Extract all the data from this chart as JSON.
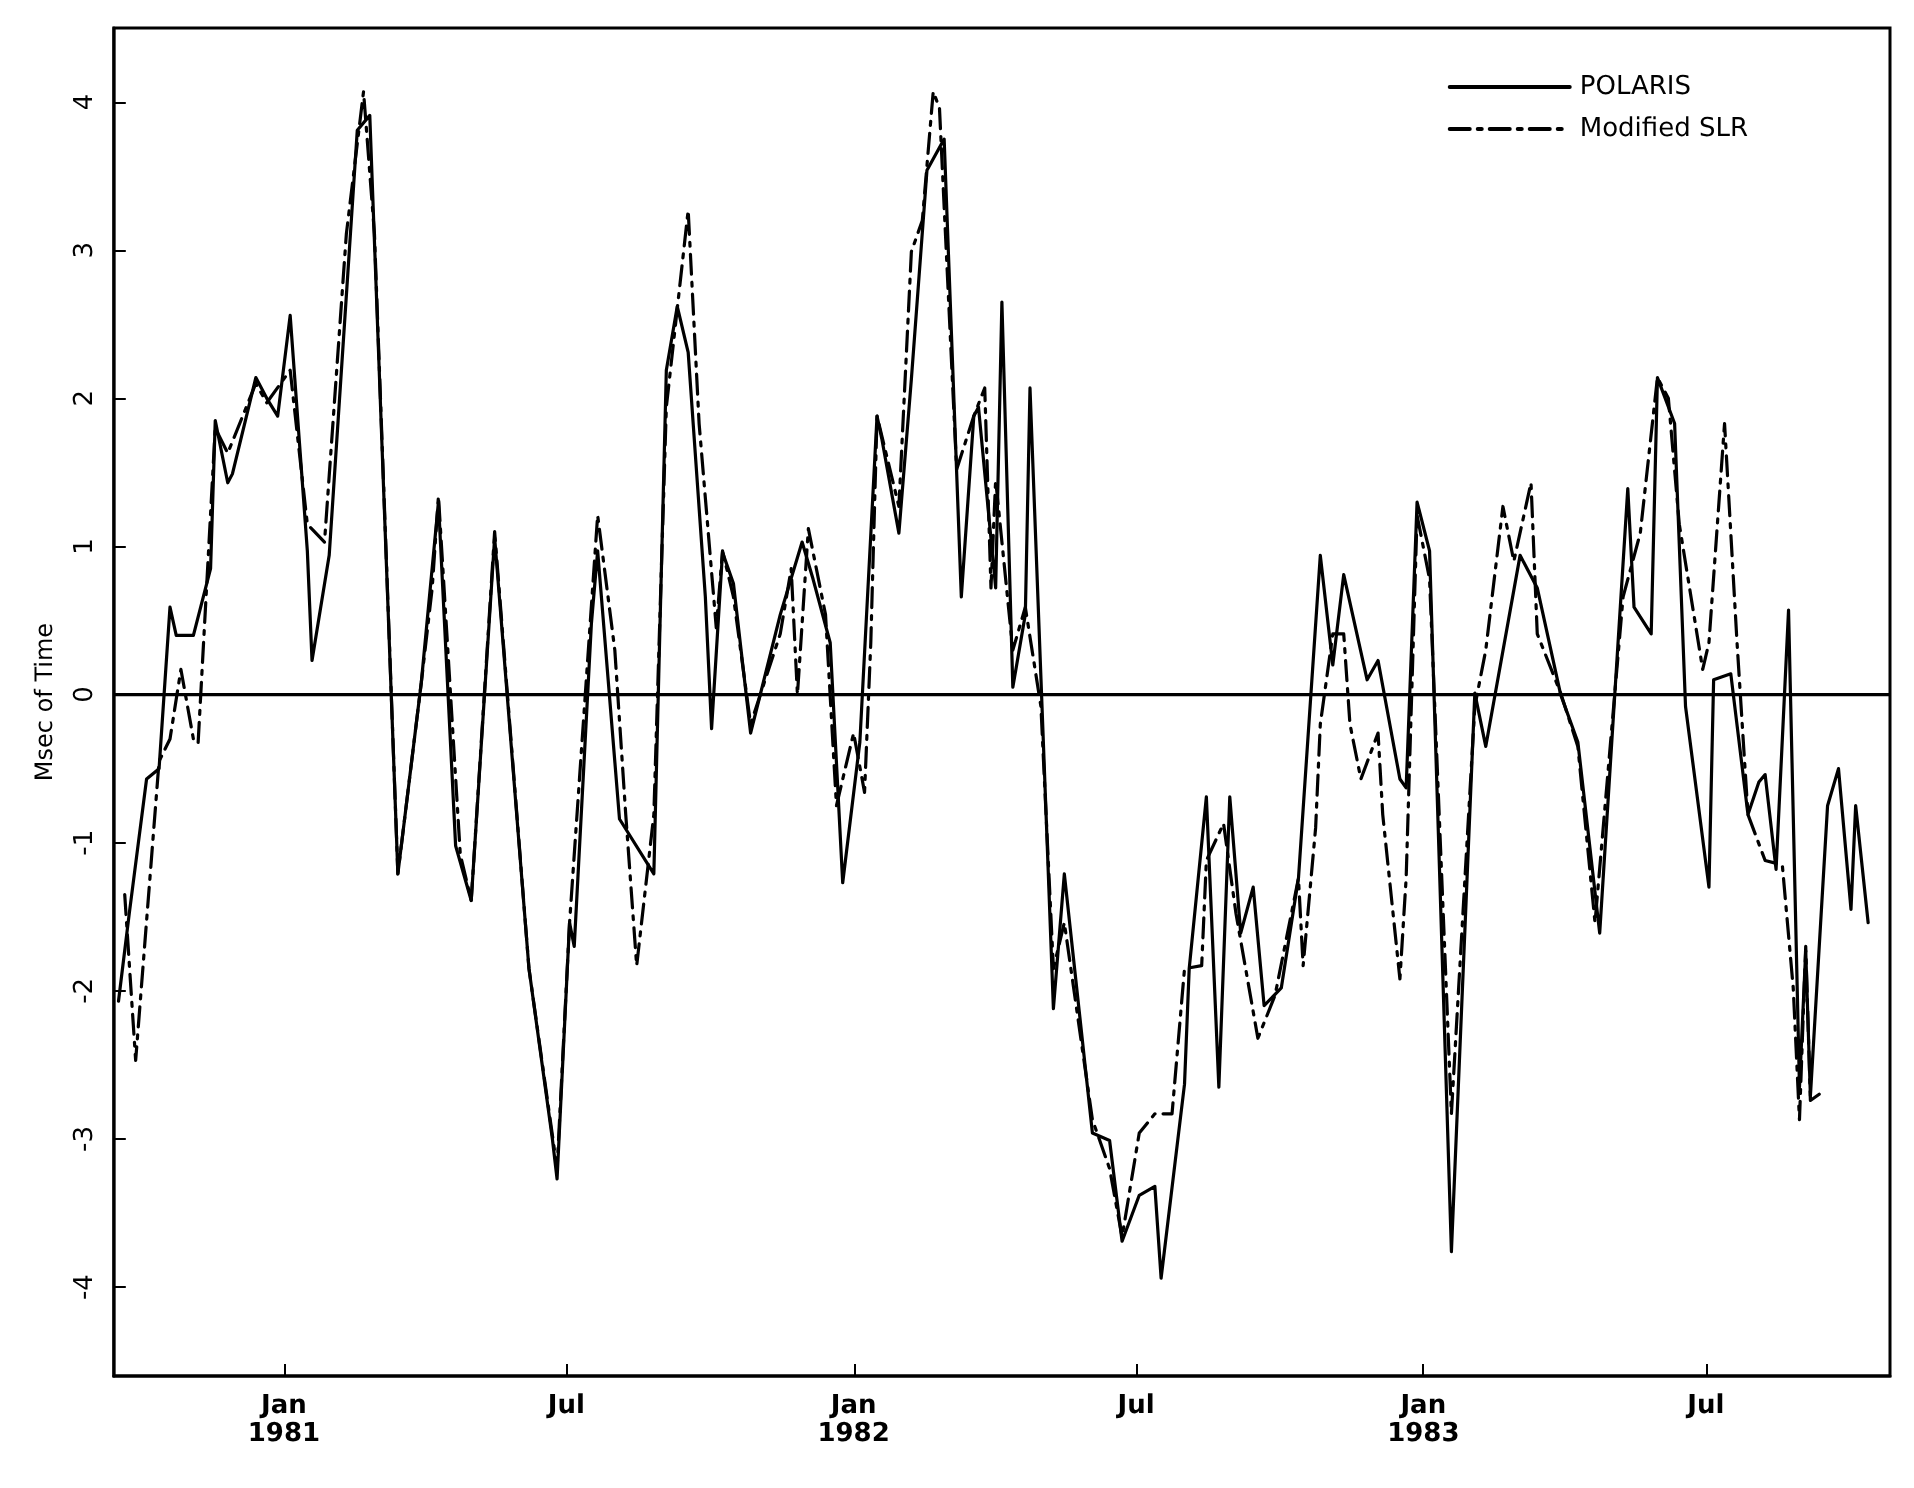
{
  "chart_data": {
    "type": "line",
    "ylabel": "Msec of Time",
    "xlim": [
      "1980-09-14",
      "1983-10-27"
    ],
    "xticks": [
      {
        "value": "1981-01-01",
        "label": "Jan\n1981"
      },
      {
        "value": "1981-07-01",
        "label": "Jul"
      },
      {
        "value": "1982-01-01",
        "label": "Jan\n1982"
      },
      {
        "value": "1982-07-01",
        "label": "Jul"
      },
      {
        "value": "1983-01-01",
        "label": "Jan\n1983"
      },
      {
        "value": "1983-07-01",
        "label": "Jul"
      }
    ],
    "ylim": [
      -4.6,
      4.5
    ],
    "yticks": [
      -4,
      -3,
      -2,
      -1,
      0,
      1,
      2,
      3,
      4
    ],
    "grid": false,
    "legend": "top right",
    "marker": "none",
    "ref_lines": [
      {
        "axis": "y",
        "value": 0,
        "color": "#000000",
        "line_style": "solid"
      }
    ],
    "series": [
      {
        "name": "POLARIS",
        "color": "#000000",
        "line_style": "solid",
        "x": [
          "1980-09-17",
          "1980-09-24",
          "1980-10-05",
          "1980-10-13",
          "1980-10-20",
          "1980-10-24",
          "1980-11-04",
          "1980-11-15",
          "1980-11-18",
          "1980-11-26",
          "1980-11-29",
          "1980-12-14",
          "1980-12-21",
          "1980-12-28",
          "1981-01-05",
          "1981-01-16",
          "1981-01-19",
          "1981-01-30",
          "1981-02-17",
          "1981-02-25",
          "1981-03-15",
          "1981-03-30",
          "1981-04-10",
          "1981-04-21",
          "1981-05-01",
          "1981-05-16",
          "1981-06-07",
          "1981-06-22",
          "1981-06-25",
          "1981-07-03",
          "1981-07-06",
          "1981-07-17",
          "1981-07-21",
          "1981-08-04",
          "1981-08-26",
          "1981-09-03",
          "1981-09-10",
          "1981-09-17",
          "1981-09-28",
          "1981-10-02",
          "1981-10-09",
          "1981-10-16",
          "1981-10-27",
          "1981-11-15",
          "1981-11-29",
          "1981-12-06",
          "1981-12-17",
          "1981-12-25",
          "1982-01-05",
          "1982-01-16",
          "1982-01-19",
          "1982-01-30",
          "1982-02-07",
          "1982-02-17",
          "1982-02-28",
          "1982-03-11",
          "1982-03-19",
          "1982-03-22",
          "1982-04-02",
          "1982-04-06",
          "1982-04-13",
          "1982-04-21",
          "1982-04-24",
          "1982-05-09",
          "1982-05-16",
          "1982-06-03",
          "1982-06-14",
          "1982-06-22",
          "1982-07-03",
          "1982-07-13",
          "1982-07-17",
          "1982-08-01",
          "1982-08-04",
          "1982-08-15",
          "1982-08-23",
          "1982-08-30",
          "1982-09-06",
          "1982-09-14",
          "1982-09-21",
          "1982-10-02",
          "1982-10-13",
          "1982-10-27",
          "1982-11-04",
          "1982-11-11",
          "1982-11-26",
          "1982-12-03",
          "1982-12-17",
          "1982-12-21",
          "1982-12-28",
          "1983-01-05",
          "1983-01-19",
          "1983-02-03",
          "1983-02-10",
          "1983-03-04",
          "1983-03-15",
          "1983-03-30",
          "1983-04-10",
          "1983-04-24",
          "1983-05-12",
          "1983-05-16",
          "1983-05-27",
          "1983-05-31",
          "1983-06-11",
          "1983-06-18",
          "1983-07-03",
          "1983-07-06",
          "1983-07-17",
          "1983-07-28",
          "1983-08-04",
          "1983-08-08",
          "1983-08-15",
          "1983-08-23",
          "1983-08-30",
          "1983-09-03",
          "1983-09-06",
          "1983-09-17",
          "1983-09-24",
          "1983-10-02",
          "1983-10-05",
          "1983-10-13"
        ],
        "values": [
          -2.07,
          -1.47,
          -0.57,
          -0.5,
          0.59,
          0.4,
          0.4,
          0.85,
          1.85,
          1.43,
          1.49,
          2.14,
          2.0,
          1.88,
          2.56,
          0.97,
          0.23,
          0.94,
          3.81,
          3.91,
          -1.21,
          0.08,
          1.3,
          -1.02,
          -1.39,
          1.06,
          -1.85,
          -3.0,
          -3.27,
          -1.54,
          -1.7,
          0.48,
          0.97,
          -0.84,
          -1.21,
          2.19,
          2.62,
          2.31,
          0.66,
          -0.23,
          0.96,
          0.75,
          -0.26,
          0.54,
          1.03,
          0.78,
          0.35,
          -1.27,
          -0.32,
          1.88,
          1.73,
          1.09,
          2.13,
          3.54,
          3.75,
          0.66,
          1.88,
          1.94,
          0.72,
          2.65,
          0.05,
          0.54,
          2.07,
          -2.12,
          -1.21,
          -2.96,
          -3.01,
          -3.69,
          -3.38,
          -3.32,
          -3.94,
          -2.63,
          -1.85,
          -0.69,
          -2.65,
          -0.69,
          -1.61,
          -1.3,
          -2.1,
          -1.98,
          -1.24,
          0.94,
          0.2,
          0.81,
          0.1,
          0.23,
          -0.57,
          -0.63,
          1.3,
          0.97,
          -3.76,
          0.01,
          -0.35,
          0.94,
          0.72,
          0,
          -0.32,
          -1.61,
          1.39,
          0.59,
          0.41,
          2.14,
          1.83,
          -0.08,
          -1.3,
          0.1,
          0.14,
          -0.81,
          -0.59,
          -0.54,
          -1.18,
          0.57,
          -2.65,
          -1.73,
          -2.71,
          -0.75,
          -0.5,
          -1.45,
          -0.75,
          -1.54
        ]
      },
      {
        "name": "Modified SLR",
        "color": "#000000",
        "line_style": "dashed",
        "x": [
          "1980-09-21",
          "1980-09-28",
          "1980-10-13",
          "1980-10-20",
          "1980-10-27",
          "1980-11-04",
          "1980-11-07",
          "1980-11-18",
          "1980-11-26",
          "1980-12-14",
          "1980-12-21",
          "1981-01-05",
          "1981-01-16",
          "1981-01-27",
          "1981-02-10",
          "1981-02-21",
          "1981-02-28",
          "1981-03-15",
          "1981-03-30",
          "1981-04-06",
          "1981-04-10",
          "1981-04-24",
          "1981-05-01",
          "1981-05-16",
          "1981-06-07",
          "1981-06-25",
          "1981-07-03",
          "1981-07-17",
          "1981-07-21",
          "1981-08-01",
          "1981-08-08",
          "1981-08-15",
          "1981-08-26",
          "1981-09-03",
          "1981-09-17",
          "1981-09-24",
          "1981-10-05",
          "1981-10-09",
          "1981-10-16",
          "1981-10-27",
          "1981-11-15",
          "1981-11-22",
          "1981-11-26",
          "1981-12-03",
          "1981-12-14",
          "1981-12-21",
          "1982-01-01",
          "1982-01-08",
          "1982-01-12",
          "1982-01-16",
          "1982-01-30",
          "1982-02-07",
          "1982-02-14",
          "1982-02-21",
          "1982-02-25",
          "1982-03-08",
          "1982-03-19",
          "1982-03-26",
          "1982-03-30",
          "1982-04-02",
          "1982-04-13",
          "1982-04-21",
          "1982-05-01",
          "1982-05-09",
          "1982-05-16",
          "1982-06-03",
          "1982-06-14",
          "1982-06-22",
          "1982-07-03",
          "1982-07-13",
          "1982-07-24",
          "1982-08-01",
          "1982-08-12",
          "1982-08-15",
          "1982-08-26",
          "1982-09-03",
          "1982-09-17",
          "1982-09-28",
          "1982-10-13",
          "1982-10-16",
          "1982-10-24",
          "1982-10-27",
          "1982-11-04",
          "1982-11-11",
          "1982-11-15",
          "1982-11-22",
          "1982-12-03",
          "1982-12-06",
          "1982-12-17",
          "1982-12-21",
          "1982-12-28",
          "1983-01-05",
          "1983-01-19",
          "1983-02-03",
          "1983-02-10",
          "1983-02-21",
          "1983-02-28",
          "1983-03-11",
          "1983-03-15",
          "1983-03-30",
          "1983-04-10",
          "1983-04-21",
          "1983-05-09",
          "1983-05-20",
          "1983-05-31",
          "1983-06-07",
          "1983-06-14",
          "1983-06-29",
          "1983-07-03",
          "1983-07-13",
          "1983-07-21",
          "1983-07-28",
          "1983-08-08",
          "1983-08-19",
          "1983-08-26",
          "1983-08-30",
          "1983-09-03",
          "1983-09-06",
          "1983-09-14"
        ],
        "values": [
          -1.35,
          -2.47,
          -0.45,
          -0.3,
          0.17,
          -0.3,
          -0.33,
          1.8,
          1.63,
          2.1,
          1.97,
          2.19,
          1.15,
          1.03,
          3.11,
          4.07,
          3.11,
          -1.21,
          0.08,
          0.72,
          1.34,
          -1.08,
          -1.39,
          1.1,
          -1.85,
          -3.2,
          -1.54,
          0.6,
          1.21,
          0.3,
          -0.81,
          -1.83,
          -0.81,
          1.94,
          3.27,
          1.83,
          0.45,
          0.97,
          0.66,
          -0.2,
          0.41,
          0.85,
          0,
          1.12,
          0.54,
          -0.75,
          -0.26,
          -0.66,
          0.35,
          1.88,
          1.27,
          2.99,
          3.2,
          4.07,
          3.96,
          1.52,
          1.88,
          2.07,
          0.72,
          1.45,
          0.3,
          0.59,
          -0.08,
          -1.85,
          -1.54,
          -2.87,
          -3.2,
          -3.66,
          -2.96,
          -2.83,
          -2.83,
          -1.85,
          -1.83,
          -1.12,
          -0.87,
          -1.48,
          -2.32,
          -2.03,
          -1.24,
          -1.83,
          -0.9,
          -0.2,
          0.41,
          0.41,
          -0.2,
          -0.57,
          -0.26,
          -0.81,
          -1.92,
          -1.24,
          1.21,
          0.78,
          -2.83,
          -0.08,
          0.3,
          1.27,
          0.9,
          1.43,
          0.41,
          0.01,
          -0.35,
          -1.54,
          0.66,
          1.09,
          2.14,
          2.0,
          1.15,
          0.17,
          0.35,
          1.83,
          0.35,
          -0.81,
          -1.12,
          -1.15,
          -1.98,
          -2.87,
          -1.7,
          -2.74,
          -2.68
        ]
      }
    ]
  }
}
